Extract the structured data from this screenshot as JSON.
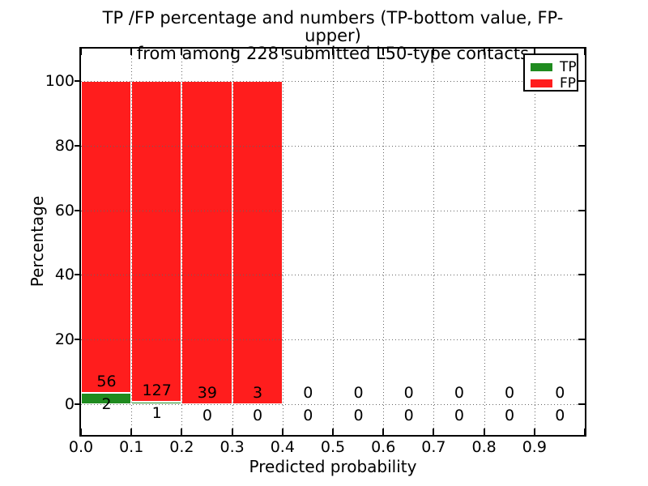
{
  "figure": {
    "title_line1": "TP /FP percentage and numbers (TP-bottom value, FP-upper)",
    "title_line2": "from among 228 submitted L50-type contacts",
    "xlabel": "Predicted probability",
    "ylabel": "Percentage"
  },
  "legend": {
    "items": [
      {
        "label": "TP",
        "color": "#1f8b1f"
      },
      {
        "label": "FP",
        "color": "#ff1d1d"
      }
    ]
  },
  "chart_data": {
    "type": "bar",
    "stacked": true,
    "title": "TP /FP percentage and numbers (TP-bottom value, FP-upper) from among 228 submitted L50-type contacts",
    "xlabel": "Predicted probability",
    "ylabel": "Percentage",
    "total_submitted": 228,
    "contact_type": "L50",
    "x_bins": [
      "0.0-0.1",
      "0.1-0.2",
      "0.2-0.3",
      "0.3-0.4",
      "0.4-0.5",
      "0.5-0.6",
      "0.6-0.7",
      "0.7-0.8",
      "0.8-0.9",
      "0.9-1.0"
    ],
    "x_tick_labels": [
      "0.0",
      "0.1",
      "0.2",
      "0.3",
      "0.4",
      "0.5",
      "0.6",
      "0.7",
      "0.8",
      "0.9"
    ],
    "y_ticks": [
      0,
      20,
      40,
      60,
      80,
      100
    ],
    "y_tick_labels": [
      "0",
      "20",
      "40",
      "60",
      "80",
      "100"
    ],
    "xlim": [
      0.0,
      1.0
    ],
    "ylim": [
      -10,
      110
    ],
    "grid": true,
    "grid_style": "dotted",
    "legend_position": "upper right",
    "series": [
      {
        "name": "TP",
        "color": "#1f8b1f",
        "counts": [
          2,
          1,
          0,
          0,
          0,
          0,
          0,
          0,
          0,
          0
        ]
      },
      {
        "name": "FP",
        "color": "#ff1d1d",
        "counts": [
          56,
          127,
          39,
          3,
          0,
          0,
          0,
          0,
          0,
          0
        ]
      }
    ],
    "percent_tp": [
      3.45,
      0.78,
      0,
      0,
      0,
      0,
      0,
      0,
      0,
      0
    ],
    "percent_fp": [
      96.55,
      99.22,
      100,
      100,
      0,
      0,
      0,
      0,
      0,
      0
    ]
  }
}
